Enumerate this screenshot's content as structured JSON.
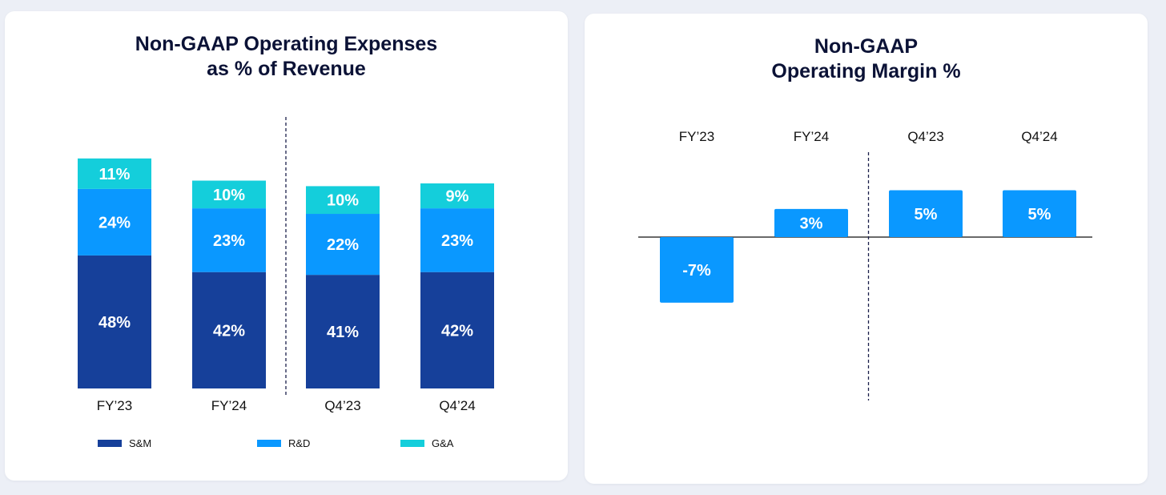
{
  "colors": {
    "sm": "#16409a",
    "rd": "#0a98ff",
    "ga": "#14cedb",
    "axis": "#111111",
    "divider": "#1b1f4a"
  },
  "left_card": {
    "title_line1": "Non-GAAP Operating Expenses",
    "title_line2": "as % of Revenue"
  },
  "right_card": {
    "title_line1": "Non-GAAP",
    "title_line2": "Operating Margin %"
  },
  "chart_data": [
    {
      "type": "bar",
      "stacked": true,
      "title": "Non-GAAP Operating Expenses as % of Revenue",
      "categories": [
        "FY’23",
        "FY’24",
        "Q4’23",
        "Q4’24"
      ],
      "series": [
        {
          "name": "S&M",
          "values": [
            48,
            42,
            41,
            42
          ],
          "labels": [
            "48%",
            "42%",
            "41%",
            "42%"
          ],
          "color": "#16409a"
        },
        {
          "name": "R&D",
          "values": [
            24,
            23,
            22,
            23
          ],
          "labels": [
            "24%",
            "23%",
            "22%",
            "23%"
          ],
          "color": "#0a98ff"
        },
        {
          "name": "G&A",
          "values": [
            11,
            10,
            10,
            9
          ],
          "labels": [
            "11%",
            "10%",
            "10%",
            "9%"
          ],
          "color": "#14cedb"
        }
      ],
      "legend_position": "bottom",
      "divider_after_category": 1,
      "grid": false
    },
    {
      "type": "bar",
      "title": "Non-GAAP Operating Margin %",
      "categories": [
        "FY’23",
        "FY’24",
        "Q4’23",
        "Q4’24"
      ],
      "values": [
        -7,
        3,
        5,
        5
      ],
      "labels": [
        "-7%",
        "3%",
        "5%",
        "5%"
      ],
      "category_labels_position": "top",
      "divider_after_category": 1,
      "grid": false
    }
  ]
}
